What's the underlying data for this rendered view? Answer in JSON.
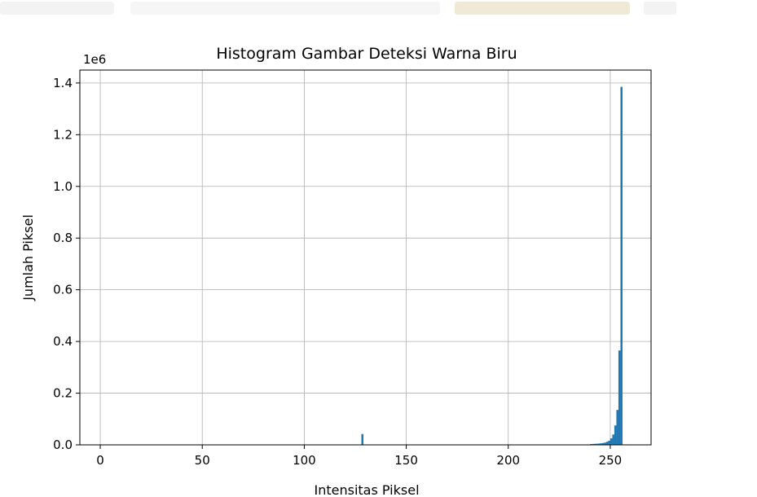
{
  "chart_data": {
    "type": "bar",
    "title": "Histogram Gambar Deteksi Warna Biru",
    "xlabel": "Intensitas Piksel",
    "ylabel": "Jumlah Piksel",
    "y_offset_label": "1e6",
    "xlim": [
      -10,
      270
    ],
    "ylim": [
      0,
      1450000
    ],
    "grid": true,
    "bar_color": "#1f77b4",
    "xticks": [
      0,
      50,
      100,
      150,
      200,
      250
    ],
    "xtick_labels": [
      "0",
      "50",
      "100",
      "150",
      "200",
      "250"
    ],
    "yticks": [
      0,
      200000,
      400000,
      600000,
      800000,
      1000000,
      1200000,
      1400000
    ],
    "ytick_labels": [
      "0.0",
      "0.2",
      "0.4",
      "0.6",
      "0.8",
      "1.0",
      "1.2",
      "1.4"
    ],
    "bins": [
      {
        "x": 128,
        "value": 42000
      },
      {
        "x": 240,
        "value": 3000
      },
      {
        "x": 241,
        "value": 3500
      },
      {
        "x": 242,
        "value": 4000
      },
      {
        "x": 243,
        "value": 4500
      },
      {
        "x": 244,
        "value": 5000
      },
      {
        "x": 245,
        "value": 6000
      },
      {
        "x": 246,
        "value": 7000
      },
      {
        "x": 247,
        "value": 9000
      },
      {
        "x": 248,
        "value": 12000
      },
      {
        "x": 249,
        "value": 16000
      },
      {
        "x": 250,
        "value": 25000
      },
      {
        "x": 251,
        "value": 40000
      },
      {
        "x": 252,
        "value": 75000
      },
      {
        "x": 253,
        "value": 135000
      },
      {
        "x": 254,
        "value": 365000
      },
      {
        "x": 255,
        "value": 1385000
      }
    ]
  }
}
